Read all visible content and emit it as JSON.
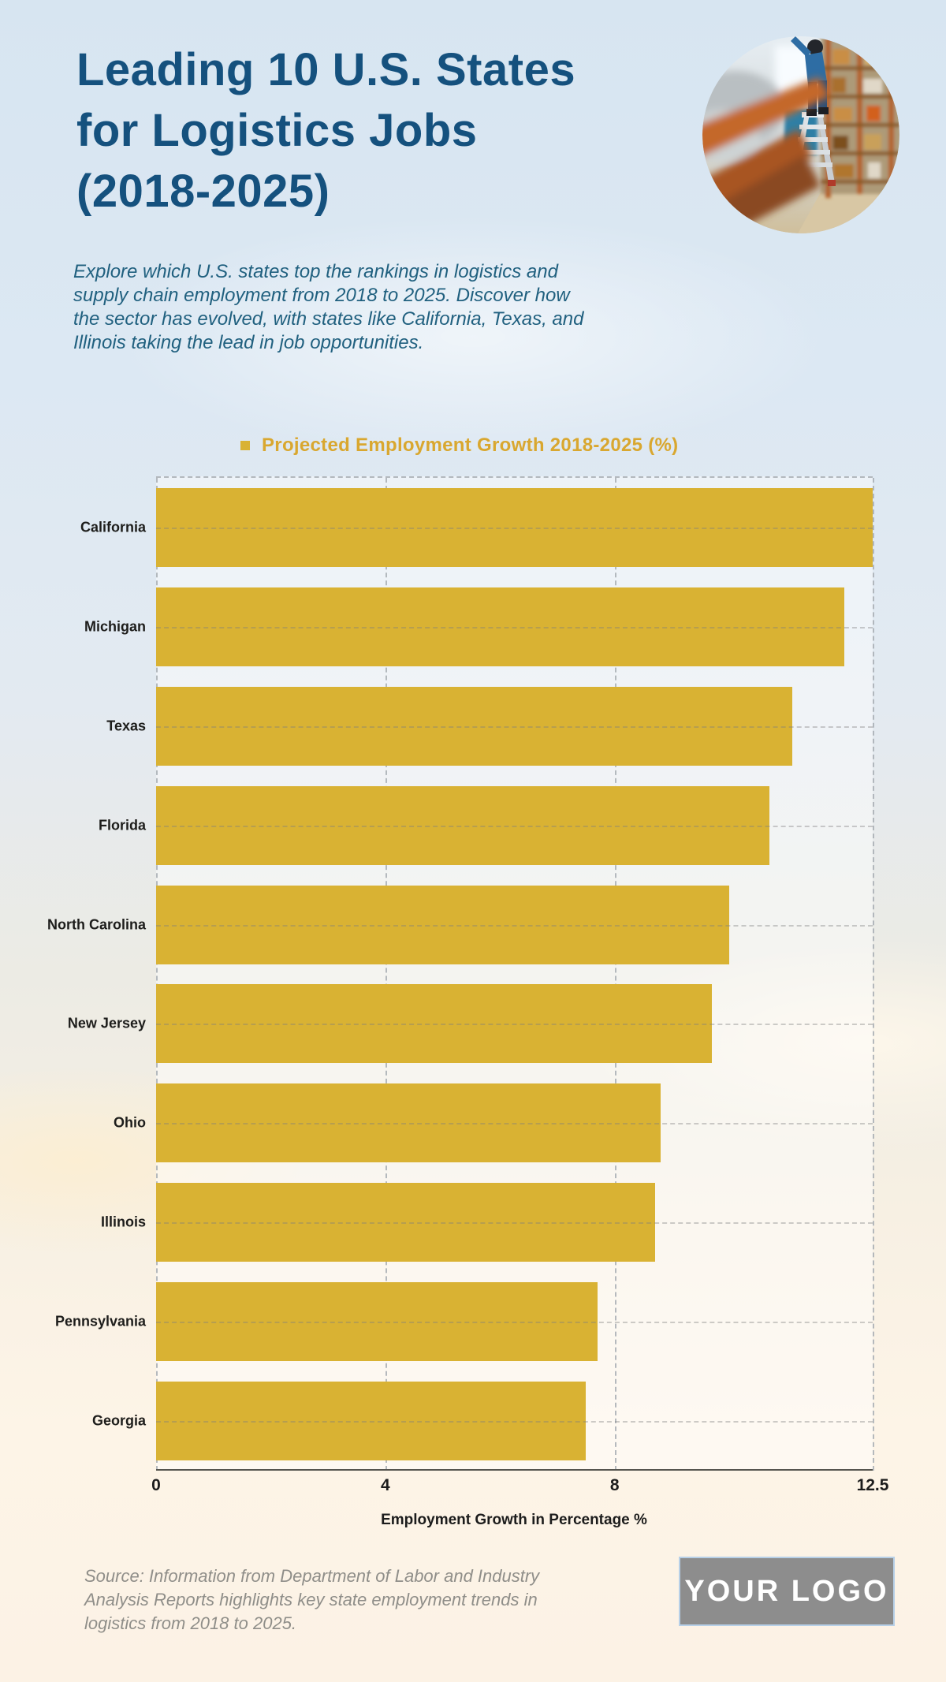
{
  "header": {
    "title_lines": [
      "Leading 10 U.S. States",
      "for Logistics Jobs",
      "(2018-2025)"
    ],
    "description_lines": [
      "Explore which U.S. states top the rankings in logistics and",
      "supply chain employment from 2018 to 2025. Discover how",
      "the sector has evolved, with states like California, Texas, and",
      "Illinois taking the lead in job opportunities."
    ]
  },
  "legend": {
    "label": "Projected Employment Growth 2018-2025 (%)"
  },
  "chart_data": {
    "type": "bar",
    "orientation": "horizontal",
    "title": "Projected Employment Growth 2018-2025 (%)",
    "categories": [
      "California",
      "Michigan",
      "Texas",
      "Florida",
      "North Carolina",
      "New Jersey",
      "Ohio",
      "Illinois",
      "Pennsylvania",
      "Georgia"
    ],
    "values": [
      12.5,
      12,
      11.1,
      10.7,
      10,
      9.7,
      8.8,
      8.7,
      7.7,
      7.5
    ],
    "xlabel": "Employment Growth in Percentage %",
    "xlim": [
      0,
      12.5
    ],
    "xticks": [
      "0",
      "4",
      "8",
      "12.5"
    ],
    "xtick_values": [
      0,
      4,
      8,
      12.5
    ],
    "grid": true,
    "legend_position": "top",
    "bar_color": "#d9b233"
  },
  "footer": {
    "source_lines": [
      "Source: Information from Department of Labor and Industry",
      "Analysis Reports highlights key state employment trends in",
      "logistics from 2018 to 2025."
    ],
    "logo_text": "YOUR LOGO"
  },
  "colors": {
    "title": "#15517e",
    "description": "#20607f",
    "legend_text": "#d9a72f",
    "bar": "#d9b233",
    "axis_line": "#56554f",
    "tick": "#1c1c1c",
    "category_label": "#1d1d1b",
    "source": "#8f8e89",
    "logo_bg": "#8d8d8d",
    "logo_border": "#b7d0e8",
    "logo_text": "#ffffff"
  }
}
